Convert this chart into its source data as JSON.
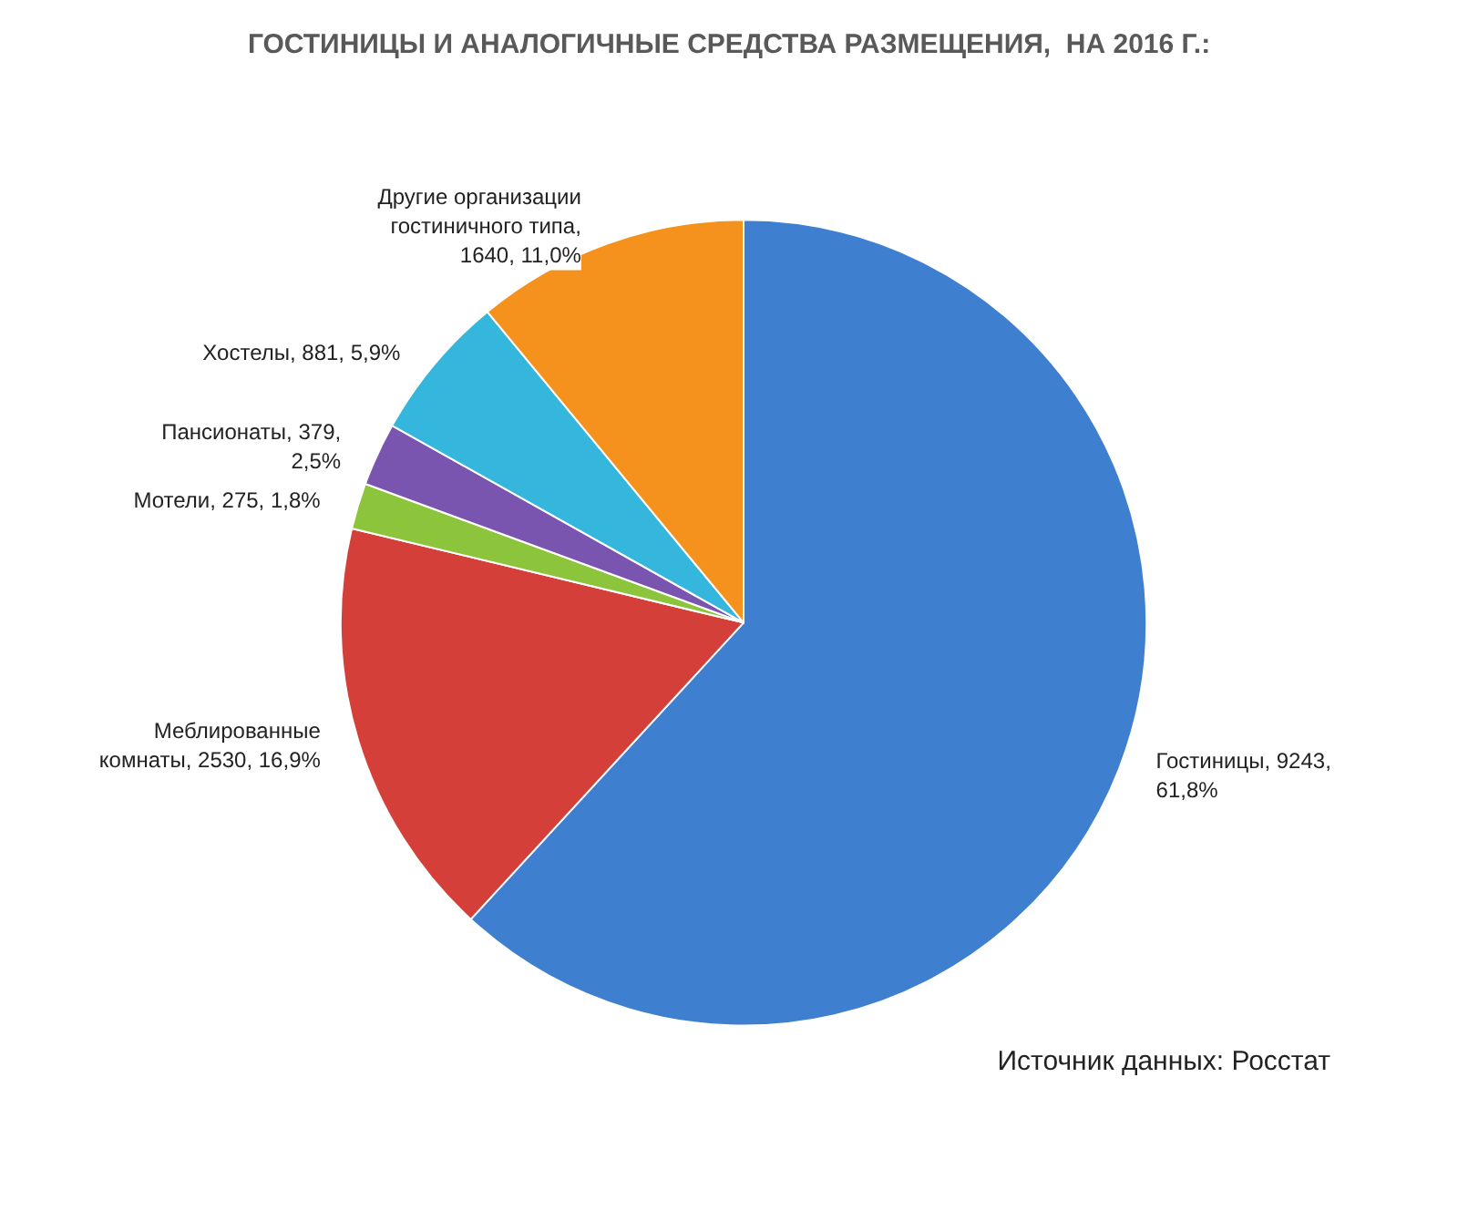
{
  "chart_data": {
    "type": "pie",
    "title": "ГОСТИНИЦЫ И АНАЛОГИЧНЫЕ СРЕДСТВА РАЗМЕЩЕНИЯ,  НА 2016 Г.:",
    "categories": [
      "Гостиницы",
      "Меблированные комнаты",
      "Мотели",
      "Пансионаты",
      "Хостелы",
      "Другие организации гостиничного типа"
    ],
    "values": [
      9243,
      2530,
      275,
      379,
      881,
      1640
    ],
    "value_labels": [
      ", 9243, 61,8%",
      ", 2530, 16,9%",
      ", 275, 1,8%",
      ", 379, 2,5%",
      ", 881, 5,9%",
      ", 1640, 11,0%"
    ],
    "colors": [
      "#3f7fd0",
      "#d43f3a",
      "#8cc43c",
      "#7a55b0",
      "#35b6dc",
      "#f5921e"
    ],
    "legend": false,
    "annotations": [
      "Источник данных: Росстат"
    ]
  }
}
